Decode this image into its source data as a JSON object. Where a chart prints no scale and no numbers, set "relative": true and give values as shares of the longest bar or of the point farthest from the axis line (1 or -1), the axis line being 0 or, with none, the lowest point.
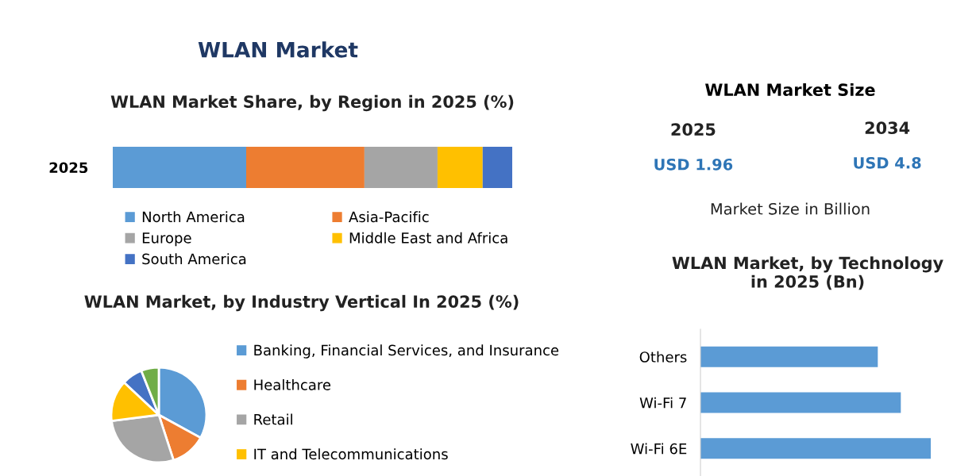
{
  "chart_data": [
    {
      "type": "other",
      "title": "WLAN Market"
    },
    {
      "type": "bar",
      "title": "WLAN Market Share, by Region in 2025 (%)",
      "orientation": "horizontal",
      "stacked": true,
      "relative": true,
      "legend": "bottom",
      "categories": [
        "2025"
      ],
      "series": [
        {
          "name": "North America",
          "color": "#5b9bd5",
          "values": [
            0.334
          ]
        },
        {
          "name": "Asia-Pacific",
          "color": "#ed7d31",
          "values": [
            0.296
          ]
        },
        {
          "name": "Europe",
          "color": "#a5a5a5",
          "values": [
            0.183
          ]
        },
        {
          "name": "Middle East and Africa",
          "color": "#ffc000",
          "values": [
            0.113
          ]
        },
        {
          "name": "South America",
          "color": "#4472c4",
          "values": [
            0.074
          ]
        }
      ]
    },
    {
      "type": "other",
      "title": "WLAN Market Size",
      "annotations": [
        "2025",
        "2034",
        "USD 1.96",
        "USD 4.8",
        "Market Size in Billion"
      ]
    },
    {
      "type": "pie",
      "title": "WLAN Market, by Industry Vertical In 2025 (%)",
      "legend": "right",
      "categories": [
        "Banking, Financial Services, and Insurance",
        "Healthcare",
        "Retail",
        "IT and Telecommunications",
        null,
        null
      ],
      "values": [
        33,
        12,
        28,
        14,
        7,
        6
      ],
      "colors": [
        "#5b9bd5",
        "#ed7d31",
        "#a5a5a5",
        "#ffc000",
        "#4472c4",
        "#70ad47"
      ]
    },
    {
      "type": "bar",
      "title": "WLAN Market, by Technology in 2025 (Bn)",
      "orientation": "horizontal",
      "relative": true,
      "categories": [
        "Others",
        "Wi-Fi 7",
        "Wi-Fi 6E"
      ],
      "values": [
        0.77,
        0.87,
        1.0
      ],
      "color": "#5b9bd5"
    }
  ]
}
